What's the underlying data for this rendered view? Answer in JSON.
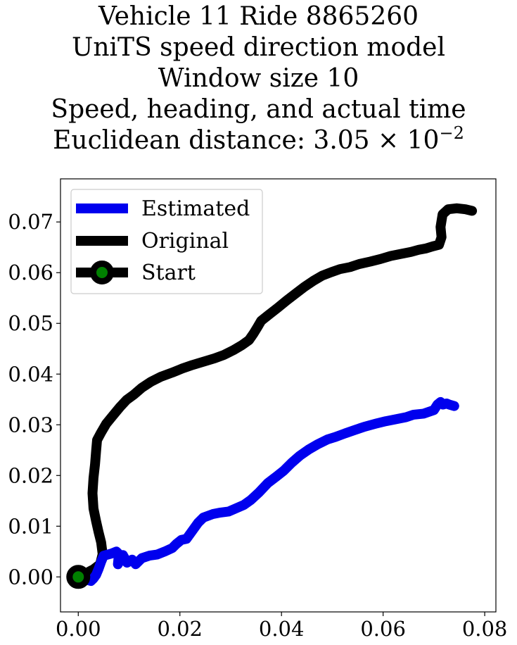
{
  "title": {
    "line1": "Vehicle 11 Ride 8865260",
    "line2": "UniTS speed direction model",
    "line3": "Window size 10",
    "line4": "Speed, heading, and actual time",
    "line5_prefix": "Euclidean distance: 3.05 × 10",
    "line5_exponent": "−2"
  },
  "chart_data": {
    "type": "line",
    "xlim": [
      -0.0035,
      0.0822
    ],
    "ylim": [
      -0.0069,
      0.0785
    ],
    "xticks": [
      0.0,
      0.02,
      0.04,
      0.06,
      0.08
    ],
    "xtick_labels": [
      "0.00",
      "0.02",
      "0.04",
      "0.06",
      "0.08"
    ],
    "yticks": [
      0.0,
      0.01,
      0.02,
      0.03,
      0.04,
      0.05,
      0.06,
      0.07
    ],
    "ytick_labels": [
      "0.00",
      "0.01",
      "0.02",
      "0.03",
      "0.04",
      "0.05",
      "0.06",
      "0.07"
    ],
    "grid": false,
    "legend_position": "top-left",
    "series": [
      {
        "name": "Estimated",
        "color": "#0000ee",
        "points": [
          [
            0.0,
            0.0
          ],
          [
            0.0015,
            -0.0005
          ],
          [
            0.0025,
            -0.0008
          ],
          [
            0.003,
            -0.0003
          ],
          [
            0.0035,
            0.0004
          ],
          [
            0.004,
            0.0016
          ],
          [
            0.0045,
            0.003
          ],
          [
            0.005,
            0.0042
          ],
          [
            0.0065,
            0.0046
          ],
          [
            0.0075,
            0.005
          ],
          [
            0.008,
            0.0045
          ],
          [
            0.0078,
            0.0025
          ],
          [
            0.0088,
            0.0043
          ],
          [
            0.0096,
            0.0028
          ],
          [
            0.0106,
            0.0034
          ],
          [
            0.0113,
            0.0025
          ],
          [
            0.0125,
            0.0037
          ],
          [
            0.014,
            0.0042
          ],
          [
            0.0155,
            0.0044
          ],
          [
            0.017,
            0.005
          ],
          [
            0.0185,
            0.0057
          ],
          [
            0.0193,
            0.0065
          ],
          [
            0.0203,
            0.0073
          ],
          [
            0.0213,
            0.0075
          ],
          [
            0.0226,
            0.0093
          ],
          [
            0.0236,
            0.0107
          ],
          [
            0.0246,
            0.0117
          ],
          [
            0.0265,
            0.0124
          ],
          [
            0.028,
            0.0127
          ],
          [
            0.0296,
            0.0129
          ],
          [
            0.031,
            0.0135
          ],
          [
            0.0326,
            0.0142
          ],
          [
            0.034,
            0.0152
          ],
          [
            0.0355,
            0.0166
          ],
          [
            0.0373,
            0.0185
          ],
          [
            0.039,
            0.0198
          ],
          [
            0.0405,
            0.021
          ],
          [
            0.042,
            0.0225
          ],
          [
            0.0436,
            0.0239
          ],
          [
            0.0453,
            0.0251
          ],
          [
            0.047,
            0.0261
          ],
          [
            0.049,
            0.0271
          ],
          [
            0.0506,
            0.0276
          ],
          [
            0.0525,
            0.0283
          ],
          [
            0.0545,
            0.029
          ],
          [
            0.0563,
            0.0296
          ],
          [
            0.0585,
            0.0302
          ],
          [
            0.0605,
            0.0307
          ],
          [
            0.062,
            0.031
          ],
          [
            0.0645,
            0.0315
          ],
          [
            0.066,
            0.032
          ],
          [
            0.068,
            0.0322
          ],
          [
            0.07,
            0.0329
          ],
          [
            0.0707,
            0.034
          ],
          [
            0.0713,
            0.0345
          ],
          [
            0.0718,
            0.034
          ],
          [
            0.0725,
            0.0342
          ],
          [
            0.073,
            0.034
          ],
          [
            0.074,
            0.0337
          ]
        ]
      },
      {
        "name": "Original",
        "color": "#000000",
        "points": [
          [
            0.0,
            0.0
          ],
          [
            0.0015,
            0.0007
          ],
          [
            0.003,
            0.0015
          ],
          [
            0.0043,
            0.0025
          ],
          [
            0.0048,
            0.0045
          ],
          [
            0.0045,
            0.0068
          ],
          [
            0.004,
            0.0088
          ],
          [
            0.0035,
            0.011
          ],
          [
            0.003,
            0.0135
          ],
          [
            0.0028,
            0.0165
          ],
          [
            0.003,
            0.0195
          ],
          [
            0.0033,
            0.0222
          ],
          [
            0.0035,
            0.0248
          ],
          [
            0.0037,
            0.027
          ],
          [
            0.0045,
            0.0285
          ],
          [
            0.0055,
            0.0302
          ],
          [
            0.0068,
            0.0318
          ],
          [
            0.0082,
            0.0335
          ],
          [
            0.0095,
            0.0349
          ],
          [
            0.011,
            0.036
          ],
          [
            0.0125,
            0.0373
          ],
          [
            0.0143,
            0.0385
          ],
          [
            0.0163,
            0.0395
          ],
          [
            0.0185,
            0.0403
          ],
          [
            0.0205,
            0.0411
          ],
          [
            0.0225,
            0.0418
          ],
          [
            0.0248,
            0.0425
          ],
          [
            0.0268,
            0.0431
          ],
          [
            0.0287,
            0.0438
          ],
          [
            0.0305,
            0.0447
          ],
          [
            0.0322,
            0.0457
          ],
          [
            0.0336,
            0.0467
          ],
          [
            0.0345,
            0.048
          ],
          [
            0.0353,
            0.0493
          ],
          [
            0.036,
            0.0505
          ],
          [
            0.0375,
            0.0517
          ],
          [
            0.0393,
            0.0531
          ],
          [
            0.041,
            0.0545
          ],
          [
            0.0428,
            0.0559
          ],
          [
            0.0445,
            0.0572
          ],
          [
            0.0463,
            0.0584
          ],
          [
            0.048,
            0.0594
          ],
          [
            0.0498,
            0.0601
          ],
          [
            0.0515,
            0.0607
          ],
          [
            0.0535,
            0.0611
          ],
          [
            0.0553,
            0.0617
          ],
          [
            0.0575,
            0.0622
          ],
          [
            0.0595,
            0.0627
          ],
          [
            0.0615,
            0.0633
          ],
          [
            0.0635,
            0.0637
          ],
          [
            0.0655,
            0.0641
          ],
          [
            0.067,
            0.0645
          ],
          [
            0.0685,
            0.0648
          ],
          [
            0.0698,
            0.0652
          ],
          [
            0.071,
            0.0655
          ],
          [
            0.0715,
            0.067
          ],
          [
            0.0713,
            0.069
          ],
          [
            0.0717,
            0.0715
          ],
          [
            0.0728,
            0.0725
          ],
          [
            0.0745,
            0.0727
          ],
          [
            0.0762,
            0.0725
          ],
          [
            0.0775,
            0.0722
          ]
        ]
      }
    ],
    "legend": [
      {
        "label": "Estimated",
        "color": "#0000ee",
        "marker": "none"
      },
      {
        "label": "Original",
        "color": "#000000",
        "marker": "none"
      },
      {
        "label": "Start",
        "color": "#000000",
        "marker": "circle",
        "marker_face": "#008000"
      }
    ],
    "start_point": {
      "x": 0.0,
      "y": 0.0,
      "label": "Start",
      "edge_color": "#000000",
      "face_color": "#008000"
    }
  }
}
